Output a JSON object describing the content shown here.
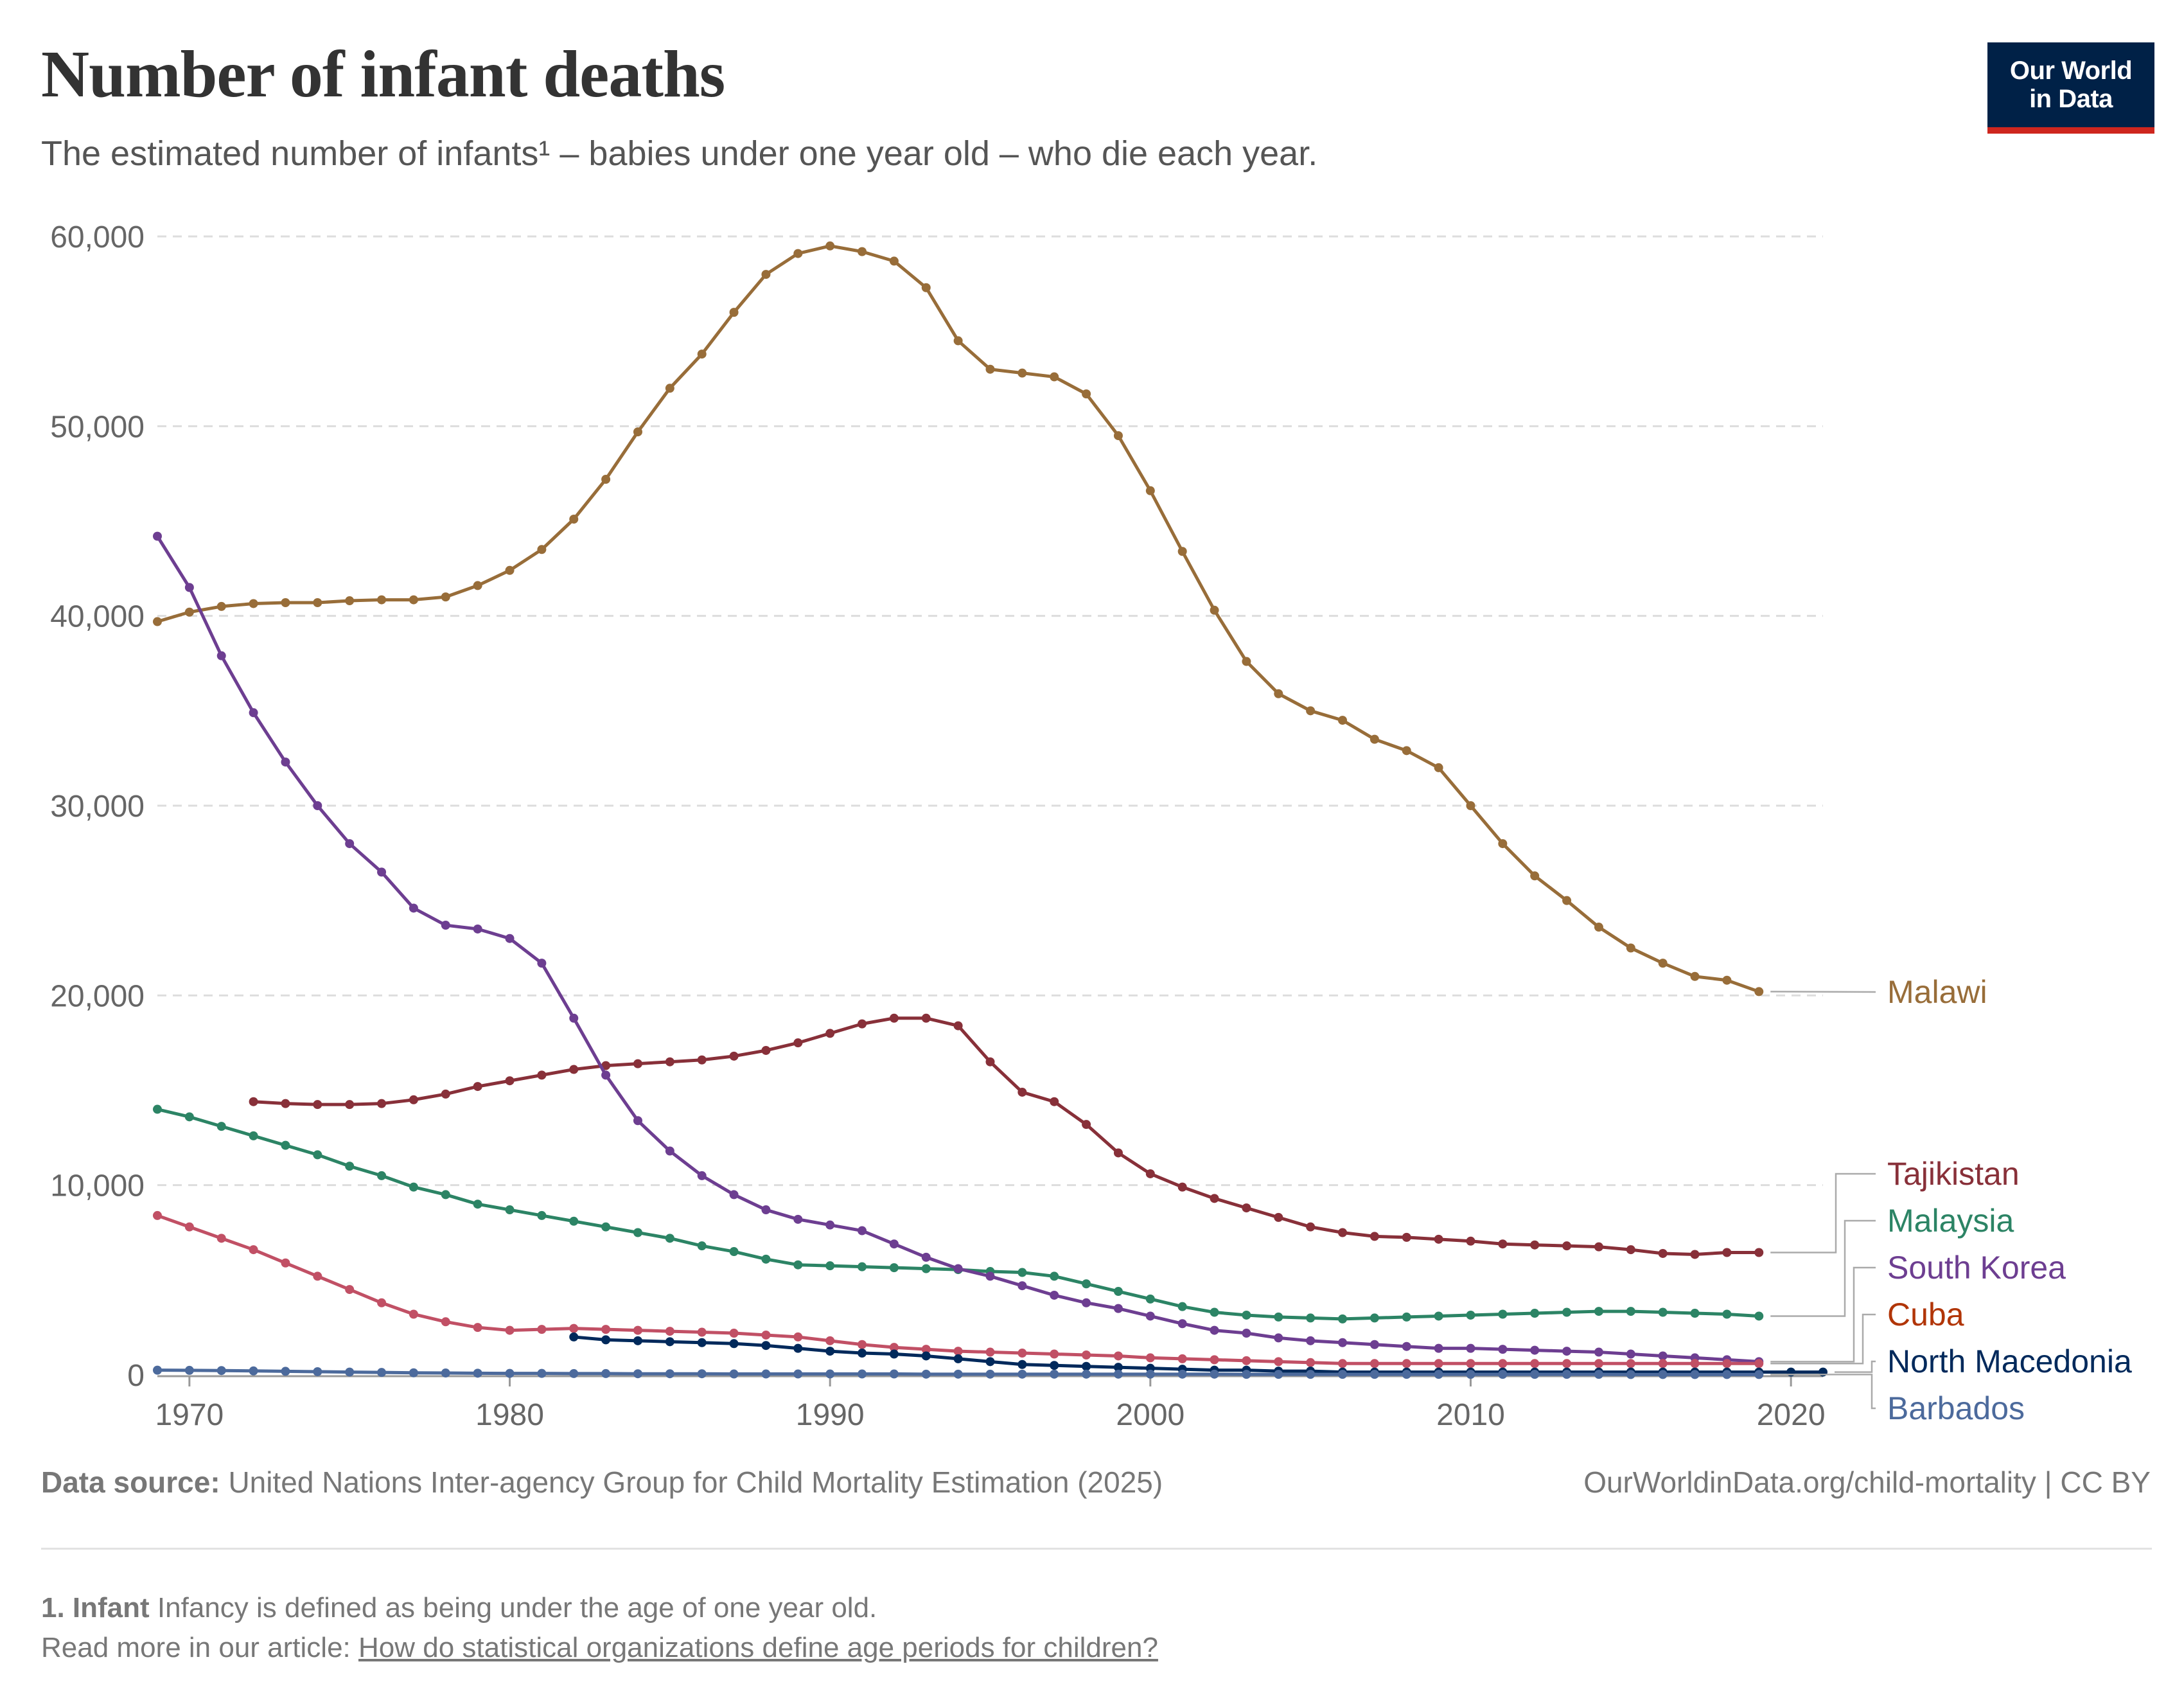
{
  "header": {
    "title": "Number of infant deaths",
    "subtitle": "The estimated number of infants¹ – babies under one year old – who die each year.",
    "logo_line1": "Our World",
    "logo_line2": "in Data"
  },
  "footer": {
    "source_label": "Data source:",
    "source_text": "United Nations Inter-agency Group for Child Mortality Estimation (2025)",
    "url_text": "OurWorldinData.org/child-mortality | CC BY",
    "note_label": "1. Infant",
    "note_text": "Infancy is defined as being under the age of one year old.",
    "readmore_prefix": "Read more in our article:",
    "readmore_link": "How do statistical organizations define age periods for children?"
  },
  "chart_data": {
    "type": "line",
    "title": "Number of infant deaths",
    "xlim": [
      1969,
      2021
    ],
    "ylim": [
      0,
      60000
    ],
    "x_ticks": [
      1970,
      1980,
      1990,
      2000,
      2010,
      2020
    ],
    "y_ticks": [
      0,
      10000,
      20000,
      30000,
      40000,
      50000,
      60000
    ],
    "y_tick_labels": [
      "0",
      "10,000",
      "20,000",
      "30,000",
      "40,000",
      "50,000",
      "60,000"
    ],
    "grid": "horizontal dashed",
    "legend": "right, labels at line ends",
    "series": [
      {
        "name": "Malawi",
        "color": "#986d39",
        "start": 1969,
        "values": [
          39700,
          40200,
          40500,
          40650,
          40700,
          40700,
          40800,
          40850,
          40850,
          41000,
          41600,
          42400,
          43500,
          45100,
          47200,
          49700,
          52000,
          53800,
          56000,
          58000,
          59100,
          59500,
          59200,
          58700,
          57300,
          54500,
          53000,
          52800,
          52600,
          51700,
          49500,
          46600,
          43400,
          40300,
          37600,
          35900,
          35000,
          34500,
          33500,
          32900,
          32000,
          30000,
          28000,
          26300,
          25000,
          23600,
          22500,
          21700,
          21000,
          20800,
          20200
        ]
      },
      {
        "name": "Tajikistan",
        "color": "#883039",
        "start": 1972,
        "values": [
          14400,
          14300,
          14250,
          14250,
          14300,
          14500,
          14800,
          15200,
          15500,
          15800,
          16100,
          16300,
          16400,
          16500,
          16600,
          16800,
          17100,
          17500,
          18000,
          18500,
          18800,
          18800,
          18400,
          16500,
          14900,
          14400,
          13200,
          11700,
          10600,
          9900,
          9300,
          8800,
          8300,
          7800,
          7500,
          7300,
          7250,
          7150,
          7050,
          6900,
          6850,
          6800,
          6750,
          6600,
          6400,
          6350,
          6450,
          6450
        ]
      },
      {
        "name": "Malaysia",
        "color": "#2c8465",
        "start": 1969,
        "values": [
          14000,
          13600,
          13100,
          12600,
          12100,
          11600,
          11000,
          10500,
          9900,
          9500,
          9000,
          8700,
          8400,
          8100,
          7800,
          7500,
          7200,
          6800,
          6500,
          6100,
          5800,
          5750,
          5700,
          5650,
          5600,
          5550,
          5450,
          5400,
          5200,
          4800,
          4400,
          4000,
          3600,
          3300,
          3150,
          3050,
          3000,
          2950,
          3000,
          3050,
          3100,
          3150,
          3200,
          3250,
          3300,
          3350,
          3350,
          3300,
          3250,
          3200,
          3100
        ]
      },
      {
        "name": "South Korea",
        "color": "#6d3e91",
        "start": 1969,
        "values": [
          44200,
          41500,
          37900,
          34900,
          32300,
          30000,
          28000,
          26500,
          24600,
          23700,
          23500,
          23000,
          21700,
          18800,
          15800,
          13400,
          11800,
          10500,
          9500,
          8700,
          8200,
          7900,
          7600,
          6900,
          6200,
          5600,
          5200,
          4700,
          4200,
          3800,
          3500,
          3100,
          2700,
          2350,
          2200,
          1950,
          1800,
          1700,
          1600,
          1500,
          1400,
          1400,
          1350,
          1300,
          1250,
          1200,
          1100,
          1000,
          900,
          800,
          700
        ]
      },
      {
        "name": "Cuba",
        "color": "#c15065",
        "start": 1969,
        "values": [
          8400,
          7800,
          7200,
          6600,
          5900,
          5200,
          4500,
          3800,
          3200,
          2800,
          2500,
          2350,
          2400,
          2450,
          2400,
          2350,
          2300,
          2250,
          2200,
          2100,
          2000,
          1800,
          1600,
          1450,
          1350,
          1250,
          1200,
          1150,
          1100,
          1050,
          1000,
          900,
          850,
          800,
          750,
          700,
          650,
          600,
          600,
          600,
          600,
          600,
          600,
          600,
          600,
          600,
          600,
          600,
          600,
          600,
          600
        ]
      },
      {
        "name": "North Macedonia",
        "color": "#00295b",
        "start": 1982,
        "values": [
          2000,
          1850,
          1800,
          1750,
          1700,
          1650,
          1550,
          1400,
          1250,
          1150,
          1100,
          1000,
          850,
          700,
          550,
          500,
          450,
          400,
          350,
          300,
          250,
          250,
          200,
          200,
          150,
          150,
          150,
          150,
          150,
          150,
          150,
          150,
          150,
          150,
          150,
          150,
          150,
          150,
          150,
          150
        ]
      },
      {
        "name": "Barbados",
        "color": "#4c6a9c",
        "start": 1969,
        "values": [
          250,
          240,
          230,
          210,
          190,
          170,
          150,
          130,
          110,
          100,
          90,
          80,
          80,
          70,
          70,
          60,
          60,
          60,
          50,
          50,
          50,
          50,
          50,
          50,
          40,
          40,
          40,
          40,
          40,
          40,
          40,
          40,
          40,
          40,
          30,
          30,
          30,
          30,
          30,
          30,
          30,
          30,
          30,
          30,
          30,
          30,
          20,
          20,
          20,
          20,
          20
        ]
      }
    ]
  }
}
